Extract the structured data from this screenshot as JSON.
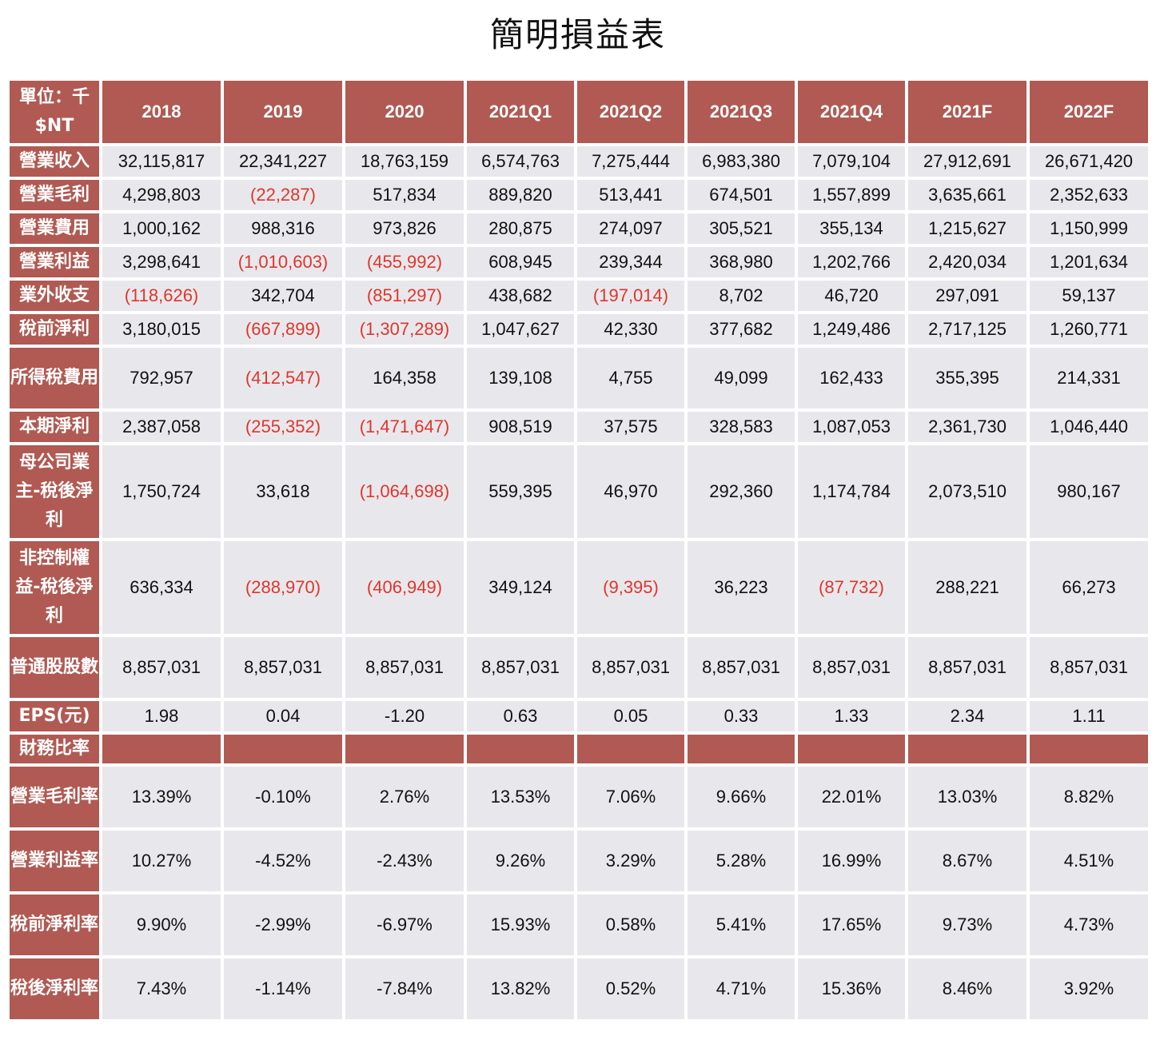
{
  "title": "簡明損益表",
  "table": {
    "unit_label": "單位：千 $NT",
    "columns": [
      "2018",
      "2019",
      "2020",
      "2021Q1",
      "2021Q2",
      "2021Q3",
      "2021Q4",
      "2021F",
      "2022F"
    ],
    "rows": [
      {
        "label": "營業收入",
        "values": [
          "32,115,817",
          "22,341,227",
          "18,763,159",
          "6,574,763",
          "7,275,444",
          "6,983,380",
          "7,079,104",
          "27,912,691",
          "26,671,420"
        ]
      },
      {
        "label": "營業毛利",
        "values": [
          "4,298,803",
          "(22,287)",
          "517,834",
          "889,820",
          "513,441",
          "674,501",
          "1,557,899",
          "3,635,661",
          "2,352,633"
        ]
      },
      {
        "label": "營業費用",
        "values": [
          "1,000,162",
          "988,316",
          "973,826",
          "280,875",
          "274,097",
          "305,521",
          "355,134",
          "1,215,627",
          "1,150,999"
        ]
      },
      {
        "label": "營業利益",
        "values": [
          "3,298,641",
          "(1,010,603)",
          "(455,992)",
          "608,945",
          "239,344",
          "368,980",
          "1,202,766",
          "2,420,034",
          "1,201,634"
        ]
      },
      {
        "label": "業外收支",
        "values": [
          "(118,626)",
          "342,704",
          "(851,297)",
          "438,682",
          "(197,014)",
          "8,702",
          "46,720",
          "297,091",
          "59,137"
        ]
      },
      {
        "label": "稅前淨利",
        "values": [
          "3,180,015",
          "(667,899)",
          "(1,307,289)",
          "1,047,627",
          "42,330",
          "377,682",
          "1,249,486",
          "2,717,125",
          "1,260,771"
        ]
      },
      {
        "label": "所得稅費用",
        "values": [
          "792,957",
          "(412,547)",
          "164,358",
          "139,108",
          "4,755",
          "49,099",
          "162,433",
          "355,395",
          "214,331"
        ]
      },
      {
        "label": "本期淨利",
        "values": [
          "2,387,058",
          "(255,352)",
          "(1,471,647)",
          "908,519",
          "37,575",
          "328,583",
          "1,087,053",
          "2,361,730",
          "1,046,440"
        ]
      },
      {
        "label": "母公司業主-稅後淨利",
        "values": [
          "1,750,724",
          "33,618",
          "(1,064,698)",
          "559,395",
          "46,970",
          "292,360",
          "1,174,784",
          "2,073,510",
          "980,167"
        ]
      },
      {
        "label": "非控制權益-稅後淨利",
        "values": [
          "636,334",
          "(288,970)",
          "(406,949)",
          "349,124",
          "(9,395)",
          "36,223",
          "(87,732)",
          "288,221",
          "66,273"
        ]
      },
      {
        "label": "普通股股數",
        "values": [
          "8,857,031",
          "8,857,031",
          "8,857,031",
          "8,857,031",
          "8,857,031",
          "8,857,031",
          "8,857,031",
          "8,857,031",
          "8,857,031"
        ]
      },
      {
        "label": "EPS(元)",
        "values": [
          "1.98",
          "0.04",
          "-1.20",
          "0.63",
          "0.05",
          "0.33",
          "1.33",
          "2.34",
          "1.11"
        ]
      },
      {
        "label": "財務比率",
        "section": true,
        "values": [
          "",
          "",
          "",
          "",
          "",
          "",
          "",
          "",
          ""
        ]
      },
      {
        "label": "營業毛利率",
        "values": [
          "13.39%",
          "-0.10%",
          "2.76%",
          "13.53%",
          "7.06%",
          "9.66%",
          "22.01%",
          "13.03%",
          "8.82%"
        ]
      },
      {
        "label": "營業利益率",
        "values": [
          "10.27%",
          "-4.52%",
          "-2.43%",
          "9.26%",
          "3.29%",
          "5.28%",
          "16.99%",
          "8.67%",
          "4.51%"
        ]
      },
      {
        "label": "稅前淨利率",
        "values": [
          "9.90%",
          "-2.99%",
          "-6.97%",
          "15.93%",
          "0.58%",
          "5.41%",
          "17.65%",
          "9.73%",
          "4.73%"
        ]
      },
      {
        "label": "稅後淨利率",
        "values": [
          "7.43%",
          "-1.14%",
          "-7.84%",
          "13.82%",
          "0.52%",
          "4.71%",
          "15.36%",
          "8.46%",
          "3.92%"
        ]
      }
    ],
    "colors": {
      "header_bg": "#b05a53",
      "cell_bg": "#e8e8ec",
      "negative_text": "#e0352b"
    }
  }
}
